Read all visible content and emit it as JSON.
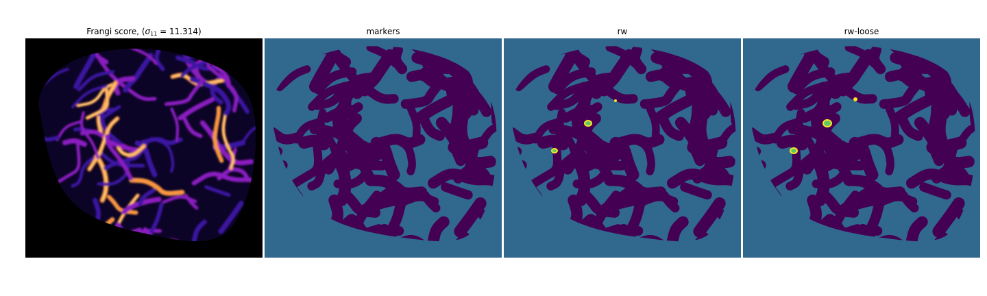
{
  "figure": {
    "panels": [
      {
        "id": "frangi",
        "title_prefix": "Frangi score, (",
        "title_sigma": "σ",
        "title_sub": "11",
        "title_suffix": " = 11.314)",
        "colormap": "plasma"
      },
      {
        "id": "markers",
        "title": "markers",
        "colormap": "viridis"
      },
      {
        "id": "rw",
        "title": "rw",
        "colormap": "viridis"
      },
      {
        "id": "rw-loose",
        "title": "rw-loose",
        "colormap": "viridis"
      }
    ],
    "colors": {
      "background_label": "#31688e",
      "vessel_label": "#440154",
      "highlight_label": "#fde725",
      "highlight_ring": "#5ec962",
      "frangi_background": "#000000",
      "frangi_low": "#3a12a0",
      "frangi_mid": "#8a1ec0",
      "frangi_high": "#f89540"
    }
  }
}
